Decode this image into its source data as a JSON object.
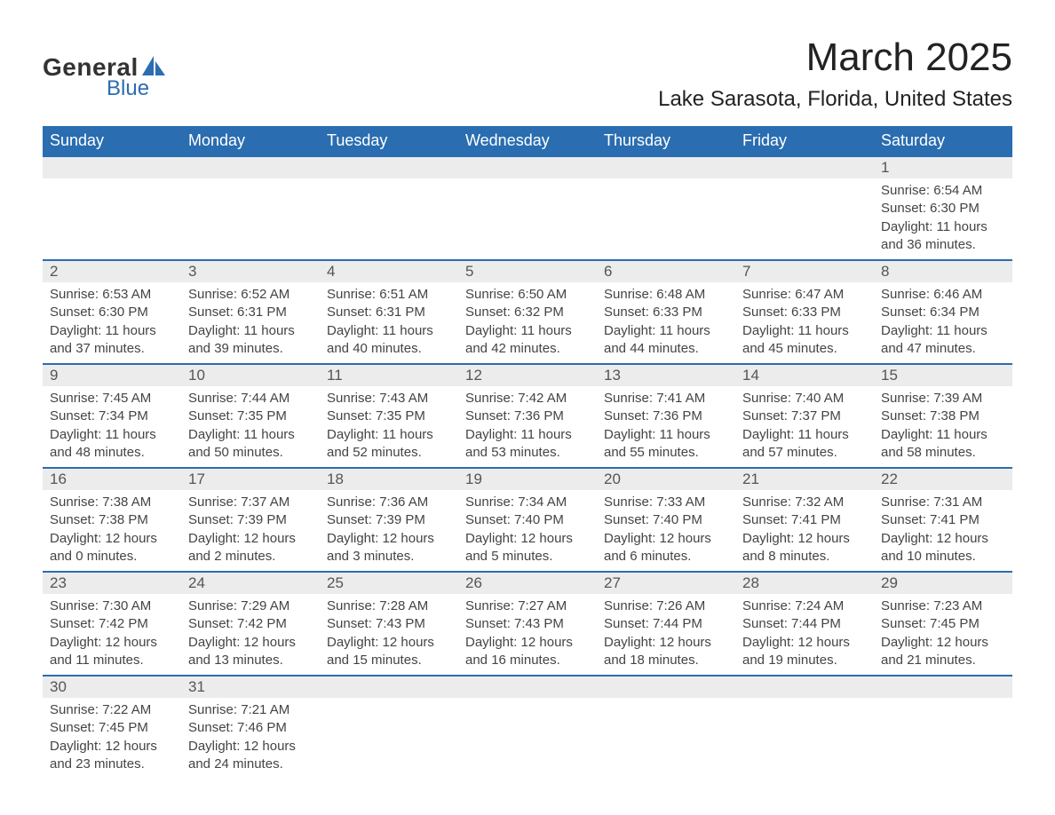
{
  "logo": {
    "text_general": "General",
    "text_blue": "Blue",
    "shape_color": "#2a6db0"
  },
  "header": {
    "month_title": "March 2025",
    "location": "Lake Sarasota, Florida, United States"
  },
  "colors": {
    "header_bg": "#2a6db0",
    "header_text": "#ffffff",
    "daynum_bg": "#ececec",
    "border": "#2a6db0",
    "body_text": "#444444"
  },
  "days_of_week": [
    "Sunday",
    "Monday",
    "Tuesday",
    "Wednesday",
    "Thursday",
    "Friday",
    "Saturday"
  ],
  "calendar": {
    "type": "table",
    "rows": 6,
    "cols": 7,
    "first_day_col": 6,
    "cells": [
      null,
      null,
      null,
      null,
      null,
      null,
      {
        "n": "1",
        "sunrise": "Sunrise: 6:54 AM",
        "sunset": "Sunset: 6:30 PM",
        "dl1": "Daylight: 11 hours",
        "dl2": "and 36 minutes."
      },
      {
        "n": "2",
        "sunrise": "Sunrise: 6:53 AM",
        "sunset": "Sunset: 6:30 PM",
        "dl1": "Daylight: 11 hours",
        "dl2": "and 37 minutes."
      },
      {
        "n": "3",
        "sunrise": "Sunrise: 6:52 AM",
        "sunset": "Sunset: 6:31 PM",
        "dl1": "Daylight: 11 hours",
        "dl2": "and 39 minutes."
      },
      {
        "n": "4",
        "sunrise": "Sunrise: 6:51 AM",
        "sunset": "Sunset: 6:31 PM",
        "dl1": "Daylight: 11 hours",
        "dl2": "and 40 minutes."
      },
      {
        "n": "5",
        "sunrise": "Sunrise: 6:50 AM",
        "sunset": "Sunset: 6:32 PM",
        "dl1": "Daylight: 11 hours",
        "dl2": "and 42 minutes."
      },
      {
        "n": "6",
        "sunrise": "Sunrise: 6:48 AM",
        "sunset": "Sunset: 6:33 PM",
        "dl1": "Daylight: 11 hours",
        "dl2": "and 44 minutes."
      },
      {
        "n": "7",
        "sunrise": "Sunrise: 6:47 AM",
        "sunset": "Sunset: 6:33 PM",
        "dl1": "Daylight: 11 hours",
        "dl2": "and 45 minutes."
      },
      {
        "n": "8",
        "sunrise": "Sunrise: 6:46 AM",
        "sunset": "Sunset: 6:34 PM",
        "dl1": "Daylight: 11 hours",
        "dl2": "and 47 minutes."
      },
      {
        "n": "9",
        "sunrise": "Sunrise: 7:45 AM",
        "sunset": "Sunset: 7:34 PM",
        "dl1": "Daylight: 11 hours",
        "dl2": "and 48 minutes."
      },
      {
        "n": "10",
        "sunrise": "Sunrise: 7:44 AM",
        "sunset": "Sunset: 7:35 PM",
        "dl1": "Daylight: 11 hours",
        "dl2": "and 50 minutes."
      },
      {
        "n": "11",
        "sunrise": "Sunrise: 7:43 AM",
        "sunset": "Sunset: 7:35 PM",
        "dl1": "Daylight: 11 hours",
        "dl2": "and 52 minutes."
      },
      {
        "n": "12",
        "sunrise": "Sunrise: 7:42 AM",
        "sunset": "Sunset: 7:36 PM",
        "dl1": "Daylight: 11 hours",
        "dl2": "and 53 minutes."
      },
      {
        "n": "13",
        "sunrise": "Sunrise: 7:41 AM",
        "sunset": "Sunset: 7:36 PM",
        "dl1": "Daylight: 11 hours",
        "dl2": "and 55 minutes."
      },
      {
        "n": "14",
        "sunrise": "Sunrise: 7:40 AM",
        "sunset": "Sunset: 7:37 PM",
        "dl1": "Daylight: 11 hours",
        "dl2": "and 57 minutes."
      },
      {
        "n": "15",
        "sunrise": "Sunrise: 7:39 AM",
        "sunset": "Sunset: 7:38 PM",
        "dl1": "Daylight: 11 hours",
        "dl2": "and 58 minutes."
      },
      {
        "n": "16",
        "sunrise": "Sunrise: 7:38 AM",
        "sunset": "Sunset: 7:38 PM",
        "dl1": "Daylight: 12 hours",
        "dl2": "and 0 minutes."
      },
      {
        "n": "17",
        "sunrise": "Sunrise: 7:37 AM",
        "sunset": "Sunset: 7:39 PM",
        "dl1": "Daylight: 12 hours",
        "dl2": "and 2 minutes."
      },
      {
        "n": "18",
        "sunrise": "Sunrise: 7:36 AM",
        "sunset": "Sunset: 7:39 PM",
        "dl1": "Daylight: 12 hours",
        "dl2": "and 3 minutes."
      },
      {
        "n": "19",
        "sunrise": "Sunrise: 7:34 AM",
        "sunset": "Sunset: 7:40 PM",
        "dl1": "Daylight: 12 hours",
        "dl2": "and 5 minutes."
      },
      {
        "n": "20",
        "sunrise": "Sunrise: 7:33 AM",
        "sunset": "Sunset: 7:40 PM",
        "dl1": "Daylight: 12 hours",
        "dl2": "and 6 minutes."
      },
      {
        "n": "21",
        "sunrise": "Sunrise: 7:32 AM",
        "sunset": "Sunset: 7:41 PM",
        "dl1": "Daylight: 12 hours",
        "dl2": "and 8 minutes."
      },
      {
        "n": "22",
        "sunrise": "Sunrise: 7:31 AM",
        "sunset": "Sunset: 7:41 PM",
        "dl1": "Daylight: 12 hours",
        "dl2": "and 10 minutes."
      },
      {
        "n": "23",
        "sunrise": "Sunrise: 7:30 AM",
        "sunset": "Sunset: 7:42 PM",
        "dl1": "Daylight: 12 hours",
        "dl2": "and 11 minutes."
      },
      {
        "n": "24",
        "sunrise": "Sunrise: 7:29 AM",
        "sunset": "Sunset: 7:42 PM",
        "dl1": "Daylight: 12 hours",
        "dl2": "and 13 minutes."
      },
      {
        "n": "25",
        "sunrise": "Sunrise: 7:28 AM",
        "sunset": "Sunset: 7:43 PM",
        "dl1": "Daylight: 12 hours",
        "dl2": "and 15 minutes."
      },
      {
        "n": "26",
        "sunrise": "Sunrise: 7:27 AM",
        "sunset": "Sunset: 7:43 PM",
        "dl1": "Daylight: 12 hours",
        "dl2": "and 16 minutes."
      },
      {
        "n": "27",
        "sunrise": "Sunrise: 7:26 AM",
        "sunset": "Sunset: 7:44 PM",
        "dl1": "Daylight: 12 hours",
        "dl2": "and 18 minutes."
      },
      {
        "n": "28",
        "sunrise": "Sunrise: 7:24 AM",
        "sunset": "Sunset: 7:44 PM",
        "dl1": "Daylight: 12 hours",
        "dl2": "and 19 minutes."
      },
      {
        "n": "29",
        "sunrise": "Sunrise: 7:23 AM",
        "sunset": "Sunset: 7:45 PM",
        "dl1": "Daylight: 12 hours",
        "dl2": "and 21 minutes."
      },
      {
        "n": "30",
        "sunrise": "Sunrise: 7:22 AM",
        "sunset": "Sunset: 7:45 PM",
        "dl1": "Daylight: 12 hours",
        "dl2": "and 23 minutes."
      },
      {
        "n": "31",
        "sunrise": "Sunrise: 7:21 AM",
        "sunset": "Sunset: 7:46 PM",
        "dl1": "Daylight: 12 hours",
        "dl2": "and 24 minutes."
      },
      null,
      null,
      null,
      null,
      null
    ]
  }
}
